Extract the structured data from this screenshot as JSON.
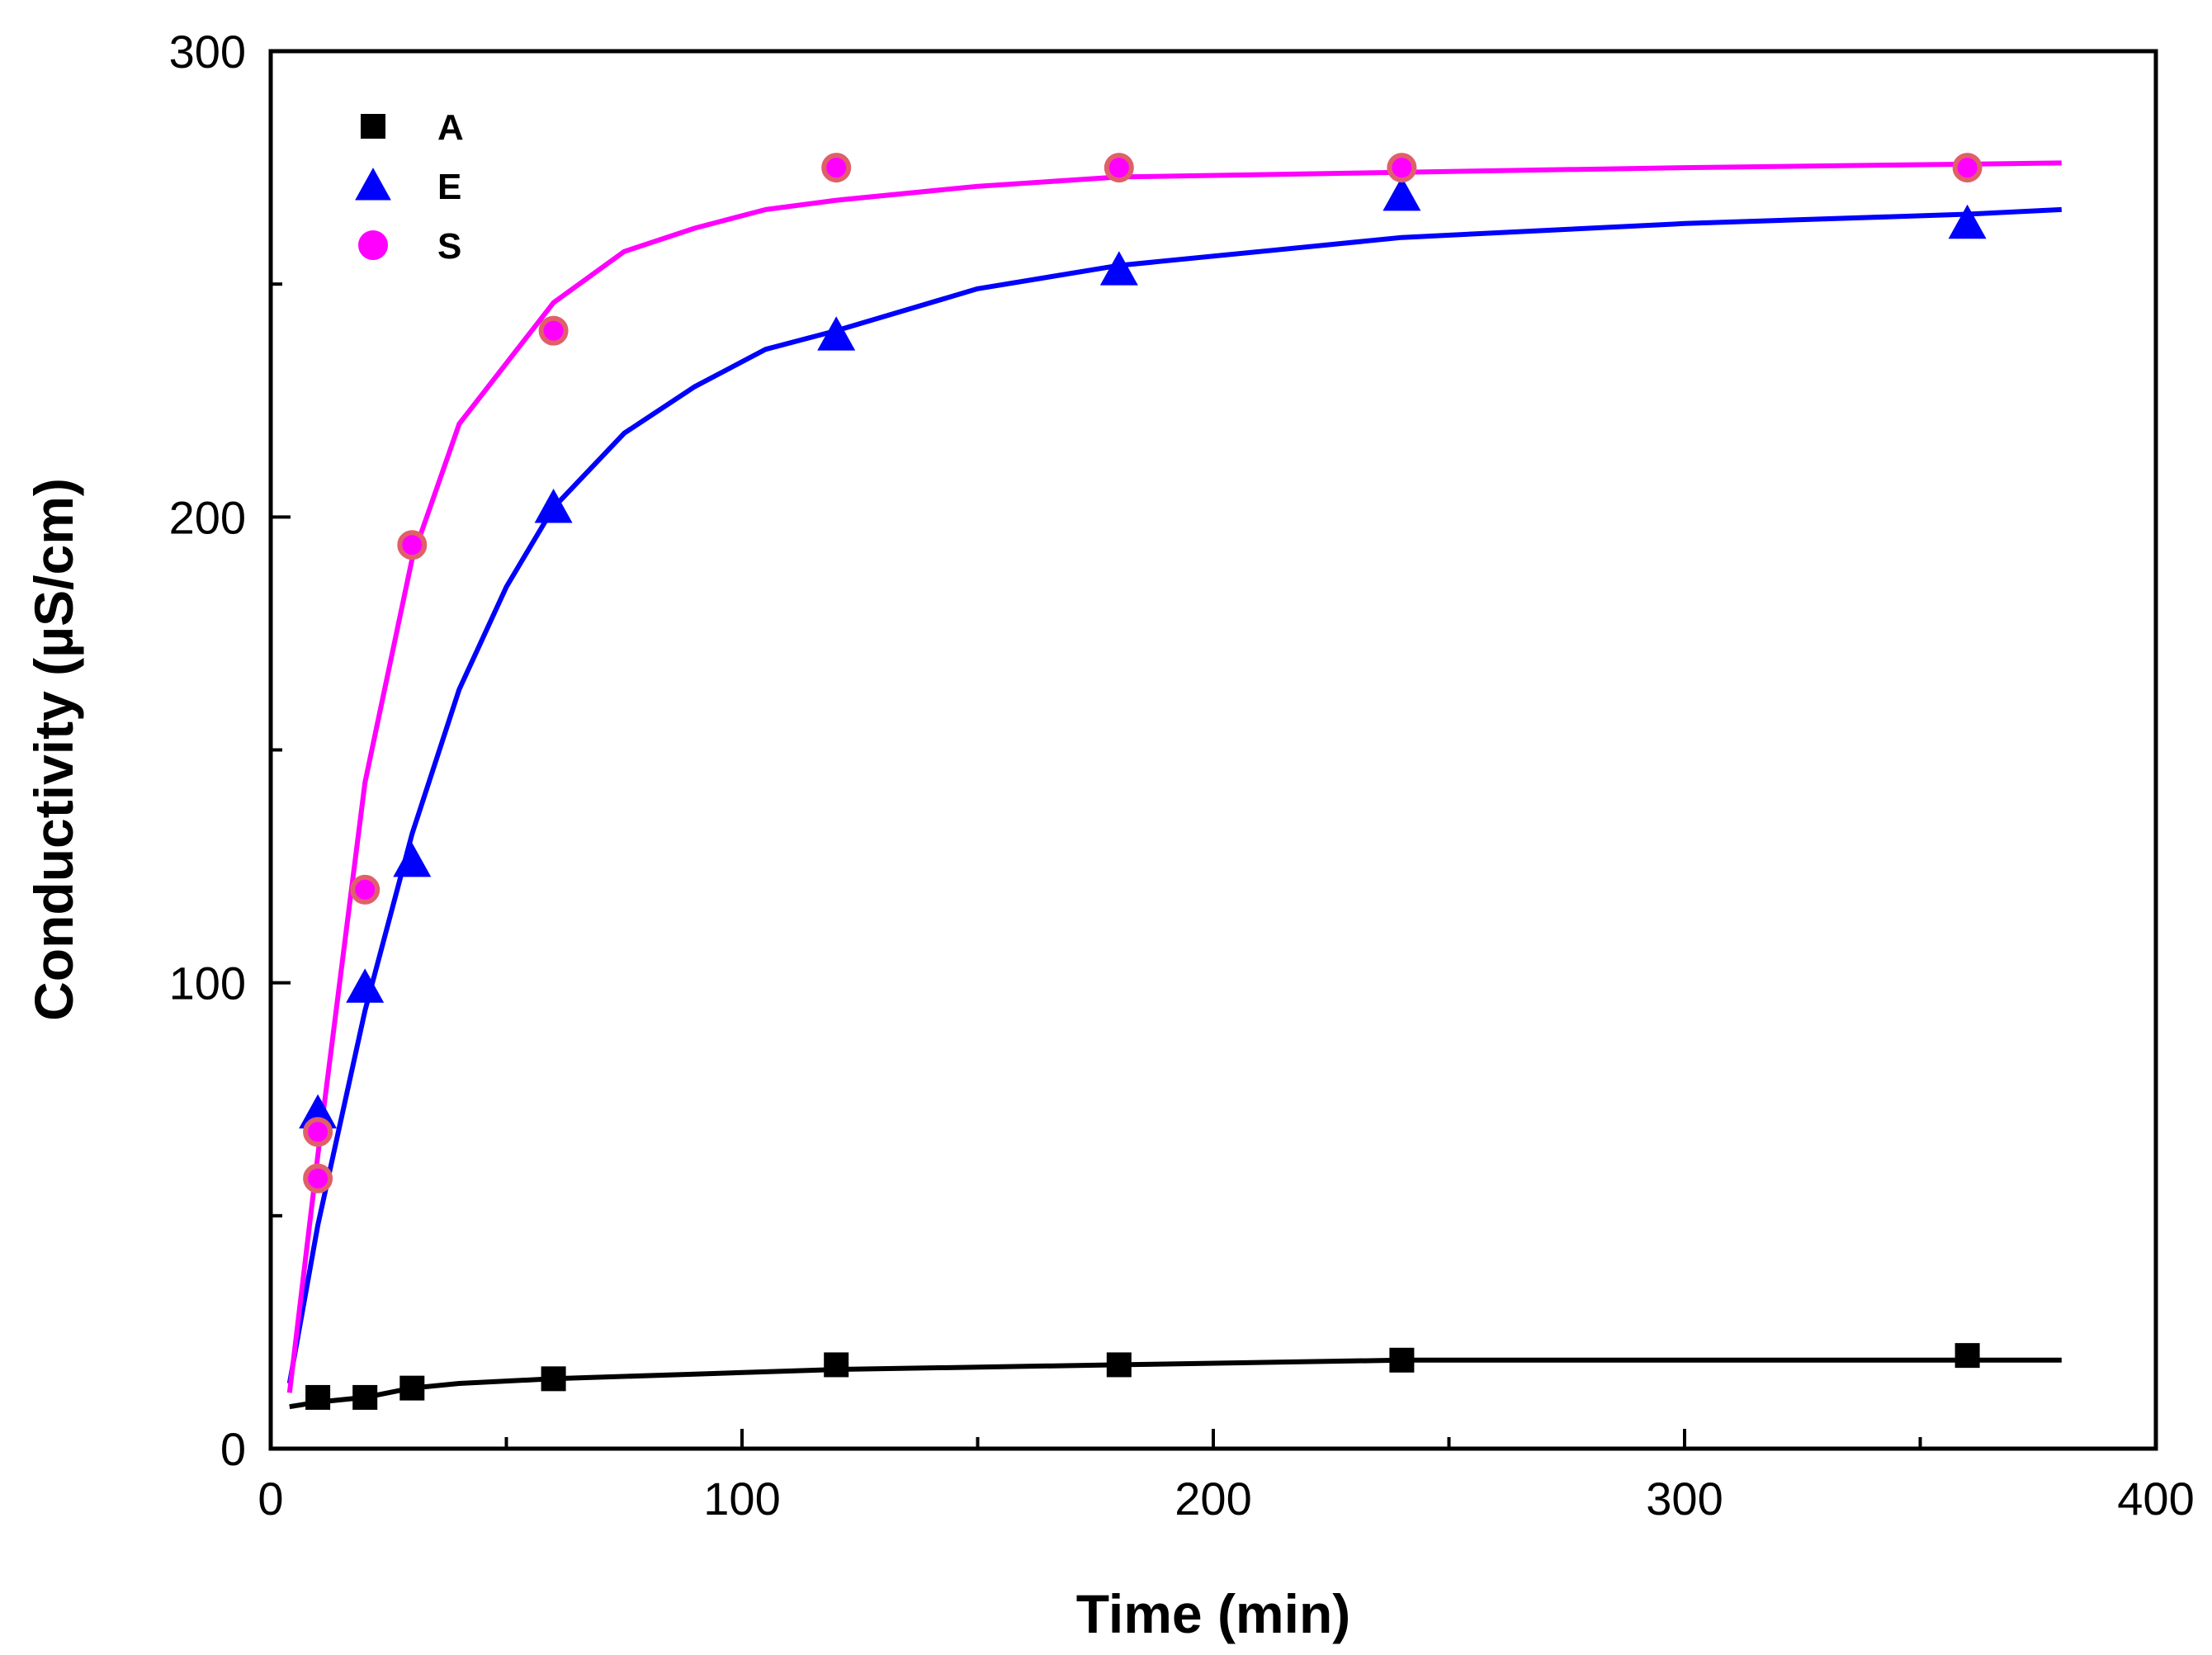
{
  "chart_data": {
    "type": "scatter",
    "title": "",
    "xlabel": "Time (min)",
    "ylabel": "Conductivity (µS/cm)",
    "xlim": [
      0,
      400
    ],
    "ylim": [
      0,
      300
    ],
    "x_ticks": [
      0,
      100,
      200,
      300,
      400
    ],
    "x_minor_ticks": [
      50,
      150,
      250,
      350
    ],
    "y_ticks": [
      0,
      100,
      200,
      300
    ],
    "y_minor_ticks": [
      50,
      150,
      250
    ],
    "grid": false,
    "legend_position": "top-left",
    "series": [
      {
        "name": "A",
        "marker": "square",
        "color": "#000000",
        "points": [
          [
            10,
            11
          ],
          [
            20,
            11
          ],
          [
            30,
            13
          ],
          [
            60,
            15
          ],
          [
            120,
            18
          ],
          [
            180,
            18
          ],
          [
            240,
            19
          ],
          [
            360,
            20
          ]
        ],
        "fit": [
          [
            4,
            9
          ],
          [
            10,
            10
          ],
          [
            20,
            11
          ],
          [
            30,
            13
          ],
          [
            40,
            14
          ],
          [
            60,
            15
          ],
          [
            90,
            16
          ],
          [
            120,
            17
          ],
          [
            180,
            18
          ],
          [
            240,
            19
          ],
          [
            300,
            19
          ],
          [
            380,
            19
          ]
        ]
      },
      {
        "name": "E",
        "marker": "triangle",
        "color": "#0000ff",
        "points": [
          [
            10,
            72
          ],
          [
            20,
            99
          ],
          [
            30,
            126
          ],
          [
            60,
            202
          ],
          [
            120,
            239
          ],
          [
            180,
            253
          ],
          [
            240,
            269
          ],
          [
            360,
            263
          ]
        ],
        "fit": [
          [
            4,
            14
          ],
          [
            10,
            48
          ],
          [
            20,
            94
          ],
          [
            30,
            132
          ],
          [
            40,
            163
          ],
          [
            50,
            185
          ],
          [
            60,
            202
          ],
          [
            75,
            218
          ],
          [
            90,
            228
          ],
          [
            105,
            236
          ],
          [
            120,
            240
          ],
          [
            150,
            249
          ],
          [
            180,
            254
          ],
          [
            210,
            257
          ],
          [
            240,
            260
          ],
          [
            300,
            263
          ],
          [
            360,
            265
          ],
          [
            380,
            266
          ]
        ]
      },
      {
        "name": "S",
        "marker": "circle",
        "color": "#ff00ff",
        "edge_color": "#e0606a",
        "points": [
          [
            10,
            68
          ],
          [
            10,
            58
          ],
          [
            20,
            120
          ],
          [
            30,
            194
          ],
          [
            60,
            240
          ],
          [
            120,
            275
          ],
          [
            180,
            275
          ],
          [
            240,
            275
          ],
          [
            360,
            275
          ]
        ],
        "fit": [
          [
            4,
            12
          ],
          [
            10,
            63
          ],
          [
            20,
            143
          ],
          [
            30,
            191
          ],
          [
            40,
            220
          ],
          [
            60,
            246
          ],
          [
            75,
            257
          ],
          [
            90,
            262
          ],
          [
            105,
            266
          ],
          [
            120,
            268
          ],
          [
            150,
            271
          ],
          [
            180,
            273
          ],
          [
            240,
            274
          ],
          [
            300,
            275
          ],
          [
            380,
            276
          ]
        ]
      }
    ]
  }
}
